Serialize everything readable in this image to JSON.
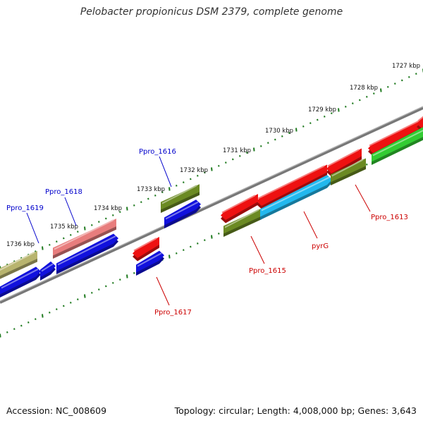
{
  "title": "Pelobacter propionicus DSM 2379, complete genome",
  "accession": "Accession: NC_008609",
  "stats": "Topology: circular; Length: 4,008,000 bp; Genes: 3,643",
  "colors": {
    "backbone": "#808080",
    "tick": "#1f7a1f",
    "label_blue": "#0000cc",
    "label_red": "#cc0000",
    "gene_red": "#ee1111",
    "gene_blue": "#1111dd",
    "gene_olive": "#6b8a23",
    "gene_khaki": "#b8b46e",
    "gene_pink": "#e87d7d",
    "gene_cyan": "#22b8ee",
    "gene_green": "#33cc33"
  },
  "scale_labels": [
    "1727 kbp",
    "1728 kbp",
    "1729 kbp",
    "1730 kbp",
    "1731 kbp",
    "1732 kbp",
    "1733 kbp",
    "1734 kbp",
    "1735 kbp",
    "1736 kbp"
  ],
  "gene_labels_upper": [
    "Ppro_1616",
    "Ppro_1618",
    "Ppro_1619"
  ],
  "gene_labels_lower": [
    "Ppro_1613",
    "pyrG",
    "Ppro_1615",
    "Ppro_1617"
  ]
}
